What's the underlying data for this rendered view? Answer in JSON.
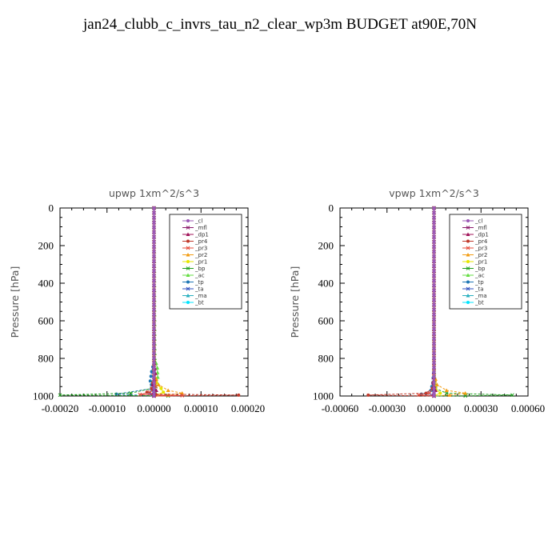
{
  "title": "jan24_clubb_c_invrs_tau_n2_clear_wp3m  BUDGET at90E,70N",
  "legend_items": [
    {
      "name": "_cl",
      "color": "#9b59b6"
    },
    {
      "name": "_mfl",
      "color": "#8b1a6b"
    },
    {
      "name": "_dp1",
      "color": "#a0145a"
    },
    {
      "name": "_pr4",
      "color": "#c0392b"
    },
    {
      "name": "_pr3",
      "color": "#e74c3c"
    },
    {
      "name": "_pr2",
      "color": "#f39c12"
    },
    {
      "name": "_pr1",
      "color": "#e6e600"
    },
    {
      "name": "_bp",
      "color": "#1e9e1e"
    },
    {
      "name": "_ac",
      "color": "#66dd44"
    },
    {
      "name": "_tp",
      "color": "#1f77b4"
    },
    {
      "name": "_ta",
      "color": "#3050c0"
    },
    {
      "name": "_ma",
      "color": "#2ab0c0"
    },
    {
      "name": "_bt",
      "color": "#00e5ff"
    }
  ],
  "chart_data": [
    {
      "type": "line",
      "title": "upwp   1xm^2/s^3",
      "ylabel": "Pressure [hPa]",
      "xlim": [
        -0.0002,
        0.0002
      ],
      "ylim": [
        1000,
        0
      ],
      "xticks": [
        "-0.00020",
        "-0.00010",
        "0.00000",
        "0.00010",
        "0.00020"
      ],
      "yticks": [
        "0",
        "200",
        "400",
        "600",
        "800",
        "1000"
      ],
      "legend_position": "top-right",
      "series": [
        {
          "name": "_cl",
          "pressure": [
            0,
            800,
            900,
            960,
            980,
            990,
            1000
          ],
          "values": [
            0,
            0,
            0,
            0,
            0,
            0,
            0
          ]
        },
        {
          "name": "_mfl",
          "pressure": [
            0,
            800,
            900,
            960,
            980,
            990,
            1000
          ],
          "values": [
            0,
            0,
            0,
            0,
            0,
            0,
            0
          ]
        },
        {
          "name": "_dp1",
          "pressure": [
            0,
            800,
            880,
            940,
            970,
            985,
            995,
            1000
          ],
          "values": [
            0,
            0,
            3e-06,
            -3e-06,
            5e-06,
            -2e-06,
            0,
            0
          ]
        },
        {
          "name": "_pr4",
          "pressure": [
            0,
            900,
            960,
            980,
            990,
            995,
            1000
          ],
          "values": [
            0,
            0,
            -5e-06,
            -1.5e-05,
            3e-06,
            0.00018,
            0
          ]
        },
        {
          "name": "_pr3",
          "pressure": [
            0,
            900,
            950,
            980,
            992,
            998,
            1000
          ],
          "values": [
            0,
            0,
            4e-06,
            -8e-06,
            -3e-05,
            6e-05,
            0
          ]
        },
        {
          "name": "_pr2",
          "pressure": [
            0,
            880,
            940,
            970,
            985,
            995,
            1000
          ],
          "values": [
            0,
            0,
            1e-05,
            3e-05,
            6e-05,
            3e-05,
            0
          ]
        },
        {
          "name": "_pr1",
          "pressure": [
            0,
            880,
            930,
            960,
            980,
            995,
            1000
          ],
          "values": [
            0,
            0,
            5e-06,
            1.5e-05,
            2e-05,
            5e-06,
            0
          ]
        },
        {
          "name": "_bp",
          "pressure": [
            0,
            900,
            960,
            985,
            995,
            999,
            1000
          ],
          "values": [
            0,
            0,
            -5e-06,
            -5e-05,
            -0.0002,
            3e-05,
            0
          ]
        },
        {
          "name": "_ac",
          "pressure": [
            0,
            800,
            850,
            900,
            950,
            1000
          ],
          "values": [
            0,
            2e-06,
            7e-06,
            8e-06,
            4e-06,
            0
          ]
        },
        {
          "name": "_tp",
          "pressure": [
            0,
            820,
            870,
            920,
            960,
            990,
            1000
          ],
          "values": [
            0,
            0,
            -5e-06,
            -8e-06,
            -3e-06,
            -8e-05,
            0
          ]
        },
        {
          "name": "_ta",
          "pressure": [
            0,
            900,
            960,
            985,
            1000
          ],
          "values": [
            0,
            0,
            -3e-06,
            -1e-05,
            0
          ]
        },
        {
          "name": "_ma",
          "pressure": [
            0,
            950,
            990,
            1000
          ],
          "values": [
            0,
            0,
            -2e-06,
            0
          ]
        },
        {
          "name": "_bt",
          "pressure": [
            0,
            1000
          ],
          "values": [
            0,
            0
          ]
        }
      ]
    },
    {
      "type": "line",
      "title": "vpwp   1xm^2/s^3",
      "ylabel": "Pressure [hPa]",
      "xlim": [
        -0.0006,
        0.0006
      ],
      "ylim": [
        1000,
        0
      ],
      "xticks": [
        "-0.00060",
        "-0.00030",
        "0.00000",
        "0.00030",
        "0.00060"
      ],
      "yticks": [
        "0",
        "200",
        "400",
        "600",
        "800",
        "1000"
      ],
      "legend_position": "top-right",
      "series": [
        {
          "name": "_cl",
          "pressure": [
            0,
            800,
            900,
            960,
            980,
            990,
            1000
          ],
          "values": [
            0,
            0,
            0,
            0,
            0,
            0,
            0
          ]
        },
        {
          "name": "_mfl",
          "pressure": [
            0,
            800,
            900,
            960,
            980,
            990,
            1000
          ],
          "values": [
            0,
            0,
            0,
            0,
            0,
            0,
            0
          ]
        },
        {
          "name": "_dp1",
          "pressure": [
            0,
            850,
            930,
            970,
            990,
            1000
          ],
          "values": [
            0,
            0,
            -5e-06,
            1e-05,
            -5e-06,
            0
          ]
        },
        {
          "name": "_pr4",
          "pressure": [
            0,
            900,
            960,
            985,
            995,
            1000
          ],
          "values": [
            0,
            0,
            -1e-05,
            -5e-05,
            -0.00042,
            0
          ]
        },
        {
          "name": "_pr3",
          "pressure": [
            0,
            900,
            960,
            985,
            995,
            1000
          ],
          "values": [
            0,
            0,
            -8e-06,
            -3e-05,
            -0.0001,
            0
          ]
        },
        {
          "name": "_pr2",
          "pressure": [
            0,
            880,
            940,
            970,
            985,
            995,
            1000
          ],
          "values": [
            0,
            0,
            2e-05,
            8e-05,
            0.0002,
            0.0001,
            0
          ]
        },
        {
          "name": "_pr1",
          "pressure": [
            0,
            900,
            960,
            985,
            1000
          ],
          "values": [
            0,
            0,
            1e-05,
            4e-05,
            0
          ]
        },
        {
          "name": "_bp",
          "pressure": [
            0,
            900,
            960,
            985,
            995,
            999,
            1000
          ],
          "values": [
            0,
            0,
            1e-05,
            8e-05,
            0.0005,
            0.0002,
            0
          ]
        },
        {
          "name": "_ac",
          "pressure": [
            0,
            850,
            920,
            970,
            1000
          ],
          "values": [
            0,
            0,
            5e-06,
            8e-06,
            0
          ]
        },
        {
          "name": "_tp",
          "pressure": [
            0,
            850,
            930,
            970,
            990,
            1000
          ],
          "values": [
            0,
            0,
            -8e-06,
            -2e-05,
            -8e-05,
            0
          ]
        },
        {
          "name": "_ta",
          "pressure": [
            0,
            900,
            960,
            985,
            1000
          ],
          "values": [
            0,
            0,
            -5e-06,
            -3e-05,
            0
          ]
        },
        {
          "name": "_ma",
          "pressure": [
            0,
            950,
            990,
            1000
          ],
          "values": [
            0,
            0,
            -3e-06,
            0
          ]
        },
        {
          "name": "_bt",
          "pressure": [
            0,
            1000
          ],
          "values": [
            0,
            0
          ]
        }
      ]
    }
  ]
}
